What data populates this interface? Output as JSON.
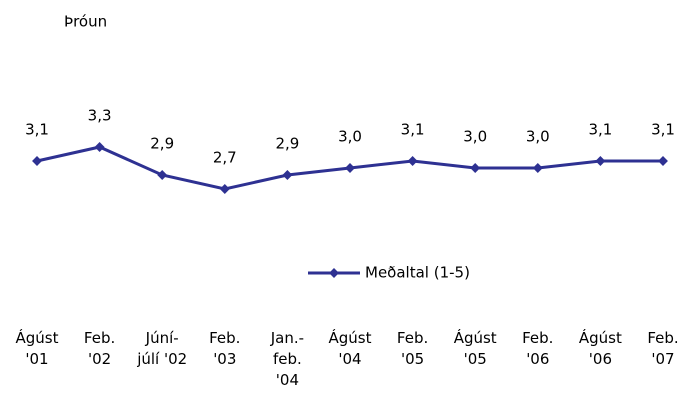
{
  "chart_data": {
    "type": "line",
    "title": "Þróun",
    "categories": [
      "Ágúst\n'01",
      "Feb.\n'02",
      "Júní-\njúlí '02",
      "Feb.\n'03",
      "Jan.-\nfeb.\n'04",
      "Ágúst\n'04",
      "Feb.\n'05",
      "Ágúst\n'05",
      "Feb.\n'06",
      "Ágúst\n'06",
      "Feb.\n'07"
    ],
    "series": [
      {
        "name": "Meðaltal (1-5)",
        "color": "#2e3192",
        "values": [
          3.1,
          3.3,
          2.9,
          2.7,
          2.9,
          3.0,
          3.1,
          3.0,
          3.0,
          3.1,
          3.1
        ],
        "value_labels": [
          "3,1",
          "3,3",
          "2,9",
          "2,7",
          "2,9",
          "3,0",
          "3,1",
          "3,0",
          "3,0",
          "3,1",
          "3,1"
        ]
      }
    ],
    "ylim": [
      2,
      3.5
    ],
    "legend": "bottom"
  }
}
